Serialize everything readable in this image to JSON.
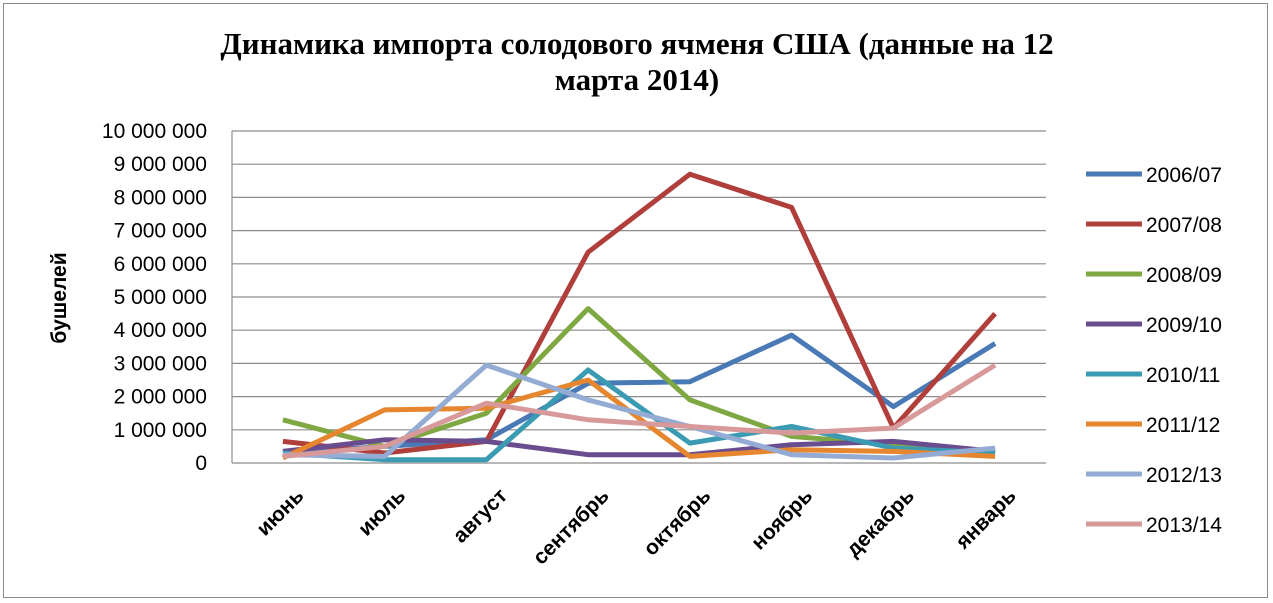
{
  "chart_data": {
    "type": "line",
    "title_lines": [
      "Динамика импорта солодового ячменя США  (данные на 12",
      "марта 2014)"
    ],
    "xlabel": "",
    "ylabel": "бушелей",
    "ylim": [
      0,
      10000000
    ],
    "yticks": [
      0,
      1000000,
      2000000,
      3000000,
      4000000,
      5000000,
      6000000,
      7000000,
      8000000,
      9000000,
      10000000
    ],
    "ytick_labels": [
      "0",
      "1 000 000",
      "2 000 000",
      "3 000 000",
      "4 000 000",
      "5 000 000",
      "6 000 000",
      "7 000 000",
      "8 000 000",
      "9 000 000",
      "10 000 000"
    ],
    "categories": [
      "июнь",
      "июль",
      "август",
      "сентябрь",
      "октябрь",
      "ноябрь",
      "декабрь",
      "январь"
    ],
    "grid": "horizontal",
    "legend_position": "right",
    "series": [
      {
        "name": "2006/07",
        "color": "#4a7ab5",
        "values": [
          300000,
          500000,
          700000,
          2400000,
          2450000,
          3850000,
          1700000,
          3600000
        ]
      },
      {
        "name": "2007/08",
        "color": "#b03f3c",
        "values": [
          650000,
          300000,
          650000,
          6350000,
          8700000,
          7700000,
          1050000,
          4500000
        ]
      },
      {
        "name": "2008/09",
        "color": "#7fa843",
        "values": [
          1300000,
          500000,
          1500000,
          4650000,
          1900000,
          800000,
          550000,
          300000
        ]
      },
      {
        "name": "2009/10",
        "color": "#6a4d8e",
        "values": [
          350000,
          700000,
          650000,
          250000,
          250000,
          550000,
          650000,
          350000
        ]
      },
      {
        "name": "2010/11",
        "color": "#3a9bb3",
        "values": [
          300000,
          100000,
          100000,
          2800000,
          600000,
          1100000,
          450000,
          300000
        ]
      },
      {
        "name": "2011/12",
        "color": "#e6862e",
        "values": [
          150000,
          1600000,
          1650000,
          2500000,
          200000,
          400000,
          350000,
          200000
        ]
      },
      {
        "name": "2012/13",
        "color": "#94acd4",
        "values": [
          250000,
          200000,
          2950000,
          1900000,
          1100000,
          250000,
          150000,
          450000
        ]
      },
      {
        "name": "2013/14",
        "color": "#d8999a",
        "values": [
          200000,
          500000,
          1800000,
          1300000,
          1100000,
          900000,
          1050000,
          2950000
        ]
      }
    ]
  }
}
